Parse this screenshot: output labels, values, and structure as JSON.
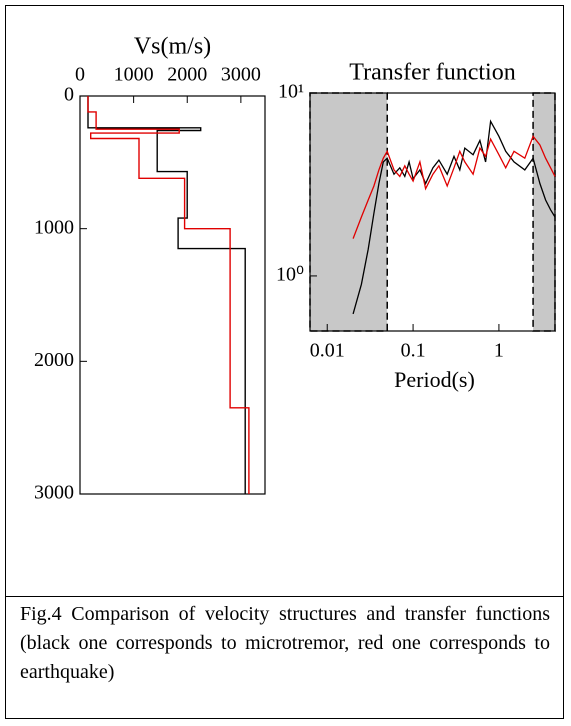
{
  "chart_data": [
    {
      "type": "profile",
      "title": "Vs(m/s)",
      "xlim": [
        0,
        3450
      ],
      "xticks": [
        0,
        1000,
        2000,
        3000
      ],
      "ylim": [
        0,
        3000
      ],
      "yticks": [
        0,
        1000,
        2000,
        3000
      ],
      "y_inverted": true,
      "series": [
        {
          "color": "#000000",
          "vs": [
            150,
            150,
            2250,
            2250,
            1440,
            1440,
            2000,
            2000,
            1830,
            1830,
            3080,
            3080
          ],
          "depth": [
            0,
            240,
            240,
            260,
            260,
            570,
            570,
            920,
            920,
            1150,
            1150,
            3000
          ]
        },
        {
          "color": "#e00000",
          "vs": [
            150,
            150,
            300,
            300,
            1850,
            1850,
            200,
            200,
            1100,
            1100,
            1950,
            1950,
            2800,
            2800,
            3150,
            3150
          ],
          "depth": [
            0,
            120,
            120,
            250,
            250,
            280,
            280,
            320,
            320,
            620,
            620,
            1000,
            1000,
            2350,
            2350,
            3000
          ]
        }
      ]
    },
    {
      "type": "line",
      "title": "Transfer function",
      "xlabel": "Period(s)",
      "xscale": "log",
      "yscale": "log",
      "xlim": [
        0.0063,
        4.5
      ],
      "xticks": [
        0.01,
        0.1,
        1
      ],
      "ylim": [
        0.5,
        10
      ],
      "yticks": [
        {
          "value": 1,
          "label": "10⁰"
        },
        {
          "value": 10,
          "label": "10¹"
        }
      ],
      "shaded": [
        [
          0.0063,
          0.05
        ],
        [
          2.5,
          4.5
        ]
      ],
      "x": [
        0.02,
        0.025,
        0.03,
        0.035,
        0.04,
        0.045,
        0.05,
        0.06,
        0.07,
        0.08,
        0.09,
        0.1,
        0.12,
        0.14,
        0.17,
        0.2,
        0.25,
        0.3,
        0.35,
        0.4,
        0.5,
        0.6,
        0.7,
        0.8,
        1,
        1.2,
        1.5,
        2,
        2.5,
        3,
        3.5,
        4,
        4.5
      ],
      "series": [
        {
          "color": "#000000",
          "values": [
            0.62,
            0.9,
            1.4,
            2.2,
            3.2,
            4.2,
            4.4,
            3.6,
            3.9,
            3.5,
            4.2,
            3.4,
            3.8,
            3.2,
            3.9,
            4.3,
            3.6,
            4.5,
            3.8,
            5.0,
            4.6,
            5.5,
            4.2,
            7.0,
            5.8,
            4.8,
            4.2,
            3.8,
            4.4,
            3.2,
            2.6,
            2.3,
            2.1
          ]
        },
        {
          "color": "#e00000",
          "values": [
            1.6,
            2.1,
            2.6,
            3.1,
            3.8,
            4.4,
            4.8,
            3.8,
            3.5,
            4.0,
            3.6,
            3.3,
            4.2,
            3.0,
            3.6,
            4.0,
            3.1,
            3.9,
            4.8,
            4.2,
            3.6,
            5.0,
            4.5,
            5.6,
            4.6,
            3.9,
            4.8,
            4.4,
            5.8,
            5.2,
            4.4,
            3.9,
            3.5
          ]
        }
      ]
    }
  ],
  "caption": "Fig.4 Comparison of velocity structures and transfer functions (black one corresponds to microtremor, red one corresponds to earthquake)"
}
